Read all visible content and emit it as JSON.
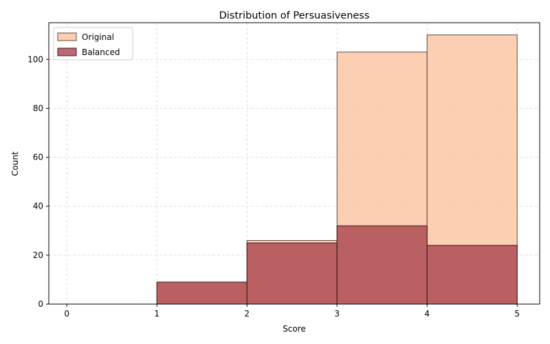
{
  "chart_data": {
    "type": "bar",
    "title": "Distribution of Persuasiveness",
    "xlabel": "Score",
    "ylabel": "Count",
    "xlim": [
      -0.2,
      5.25
    ],
    "ylim": [
      0,
      115
    ],
    "xticks": [
      0,
      1,
      2,
      3,
      4,
      5
    ],
    "yticks": [
      0,
      20,
      40,
      60,
      80,
      100
    ],
    "bins": [
      [
        0,
        1
      ],
      [
        1,
        2
      ],
      [
        2,
        3
      ],
      [
        3,
        4
      ],
      [
        4,
        5
      ]
    ],
    "grid": true,
    "legend_position": "top-left",
    "series": [
      {
        "name": "Original",
        "values": [
          0,
          9,
          26,
          103,
          110
        ],
        "color": "#fcc7a6",
        "edge_color": "#5a4a42"
      },
      {
        "name": "Balanced",
        "values": [
          0,
          9,
          25,
          32,
          24
        ],
        "color": "#a9424e",
        "edge_color": "#3c1a1d"
      }
    ]
  }
}
